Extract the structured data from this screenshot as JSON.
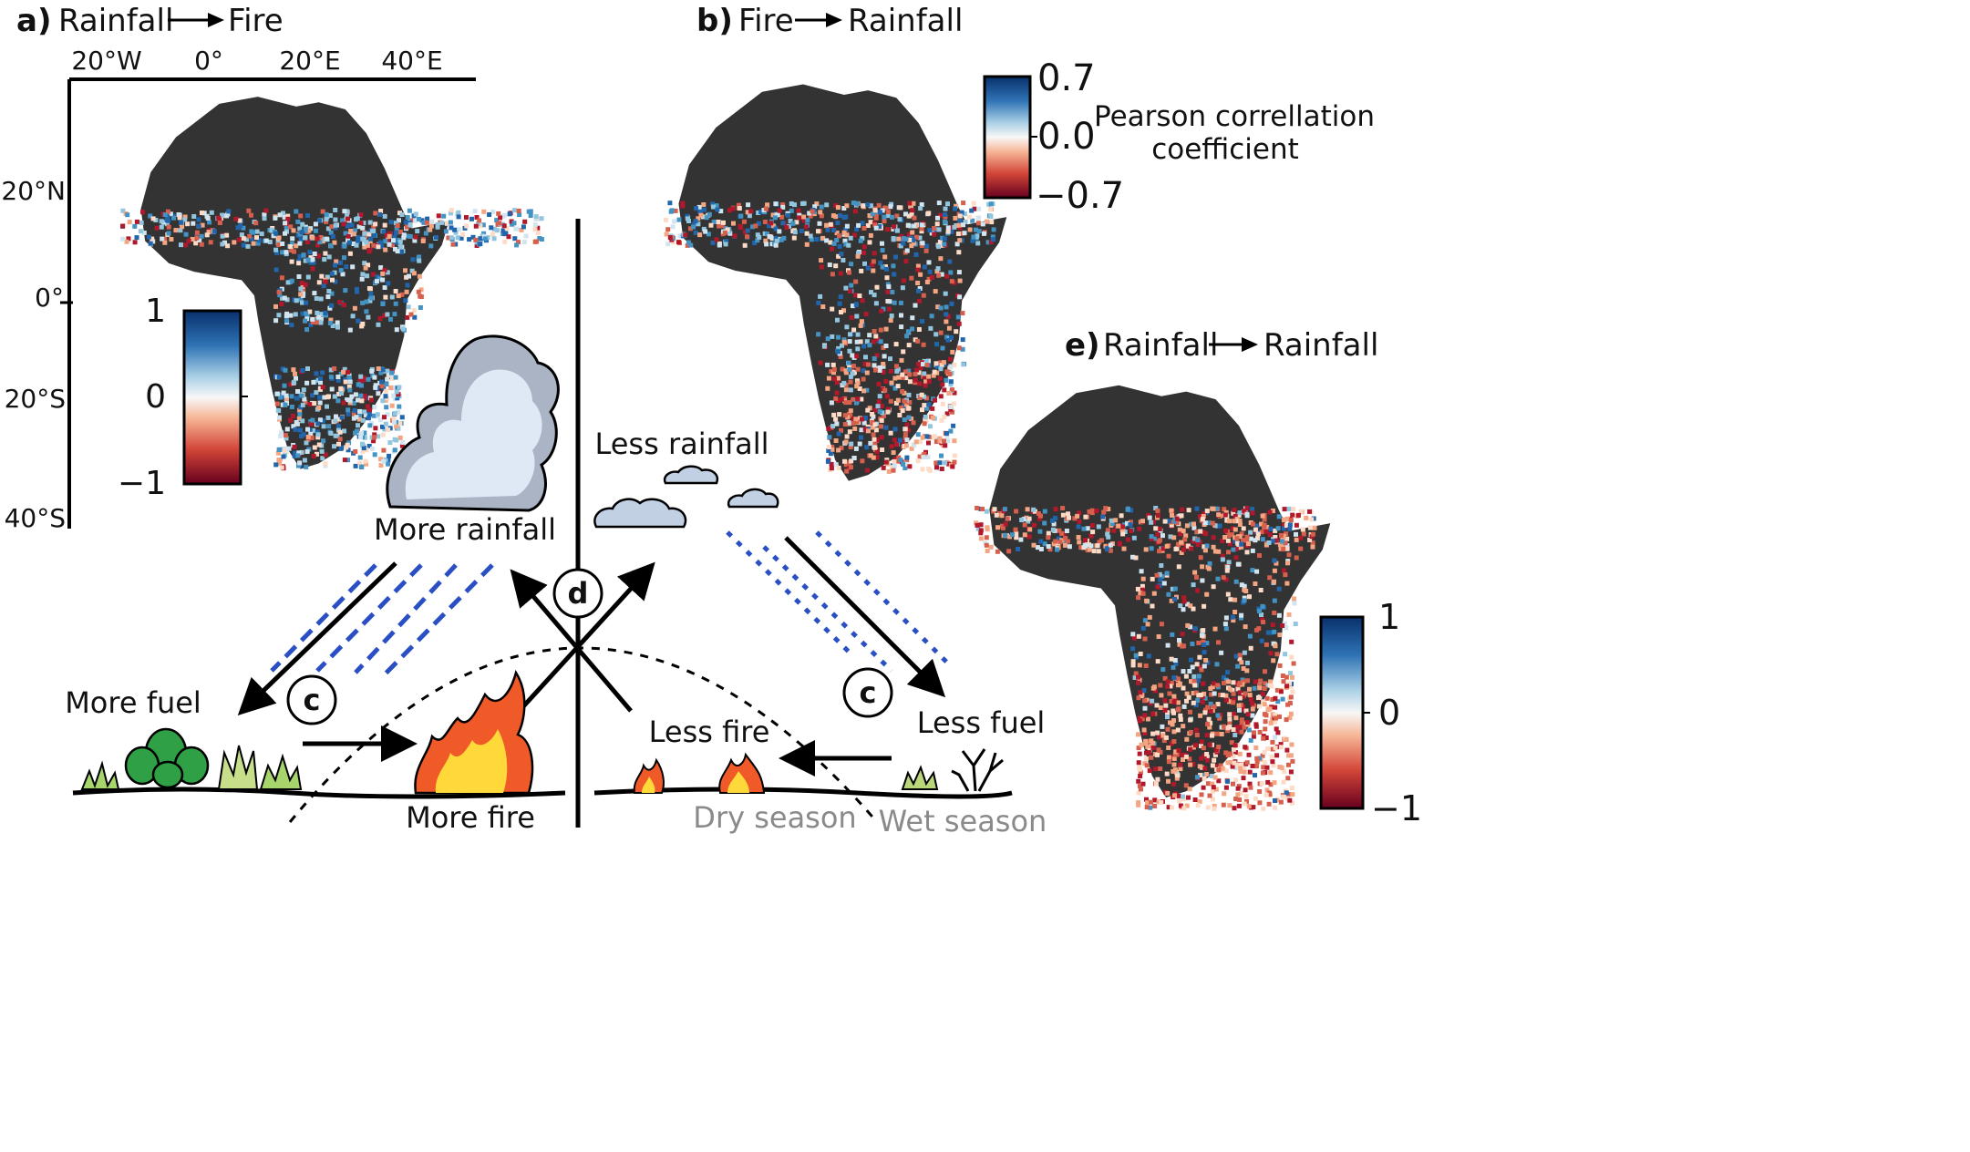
{
  "panels": {
    "a": {
      "letter": "a)",
      "from": "Rainfall",
      "to": "Fire"
    },
    "b": {
      "letter": "b)",
      "from": "Fire",
      "to": "Rainfall"
    },
    "e": {
      "letter": "e)",
      "from": "Rainfall",
      "to": "Rainfall"
    }
  },
  "map_axes": {
    "lon_ticks": [
      "20°W",
      "0°",
      "20°E",
      "40°E"
    ],
    "lat_ticks": [
      "20°N",
      "0°",
      "20°S",
      "40°S"
    ]
  },
  "colorbars": {
    "a": {
      "max": "1",
      "mid": "0",
      "min": "−1"
    },
    "b": {
      "max": "0.7",
      "mid": "0.0",
      "min": "−0.7",
      "label_line1": "Pearson correllation",
      "label_line2": "coefficient"
    },
    "e": {
      "max": "1",
      "mid": "0",
      "min": "−1"
    }
  },
  "colors": {
    "land": "#333333",
    "positive": "#2166ac",
    "negative": "#b2182b",
    "rain_lines": "#2a4fc4",
    "flame_outer": "#f05a28",
    "flame_inner": "#ffd83a",
    "cloud": "#dfe8f5"
  },
  "diagram": {
    "more_rainfall": "More rainfall",
    "less_rainfall": "Less rainfall",
    "more_fuel": "More fuel",
    "less_fuel": "Less fuel",
    "more_fire": "More fire",
    "less_fire": "Less fire",
    "dry_season": "Dry season",
    "wet_season": "Wet season",
    "badge_c": "c",
    "badge_d": "d"
  }
}
